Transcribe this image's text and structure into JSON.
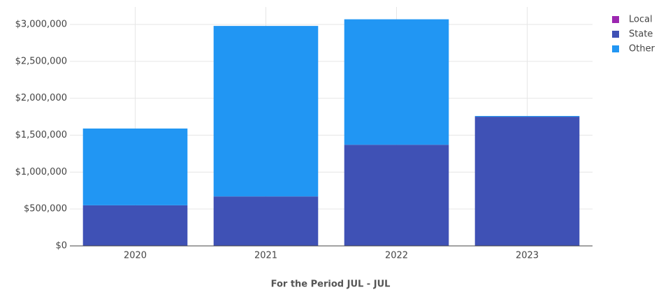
{
  "chart_data": {
    "type": "stacked-bar",
    "xlabel": "For the Period JUL - JUL",
    "categories": [
      "2020",
      "2021",
      "2022",
      "2023"
    ],
    "series": [
      {
        "name": "Local",
        "color": "#9c27b0",
        "values": [
          0,
          0,
          0,
          0
        ]
      },
      {
        "name": "State",
        "color": "#3f51b5",
        "values": [
          550000,
          670000,
          1370000,
          1750000
        ]
      },
      {
        "name": "Other",
        "color": "#2196f3",
        "values": [
          1040000,
          2310000,
          1700000,
          10000
        ]
      }
    ],
    "ylim": [
      0,
      3000000
    ],
    "yticks": [
      {
        "value": 0,
        "label": "$0"
      },
      {
        "value": 500000,
        "label": "$500,000"
      },
      {
        "value": 1000000,
        "label": "$1,000,000"
      },
      {
        "value": 1500000,
        "label": "$1,500,000"
      },
      {
        "value": 2000000,
        "label": "$2,000,000"
      },
      {
        "value": 2500000,
        "label": "$2,500,000"
      },
      {
        "value": 3000000,
        "label": "$3,000,000"
      }
    ],
    "grid": true,
    "legend": "top-right"
  }
}
